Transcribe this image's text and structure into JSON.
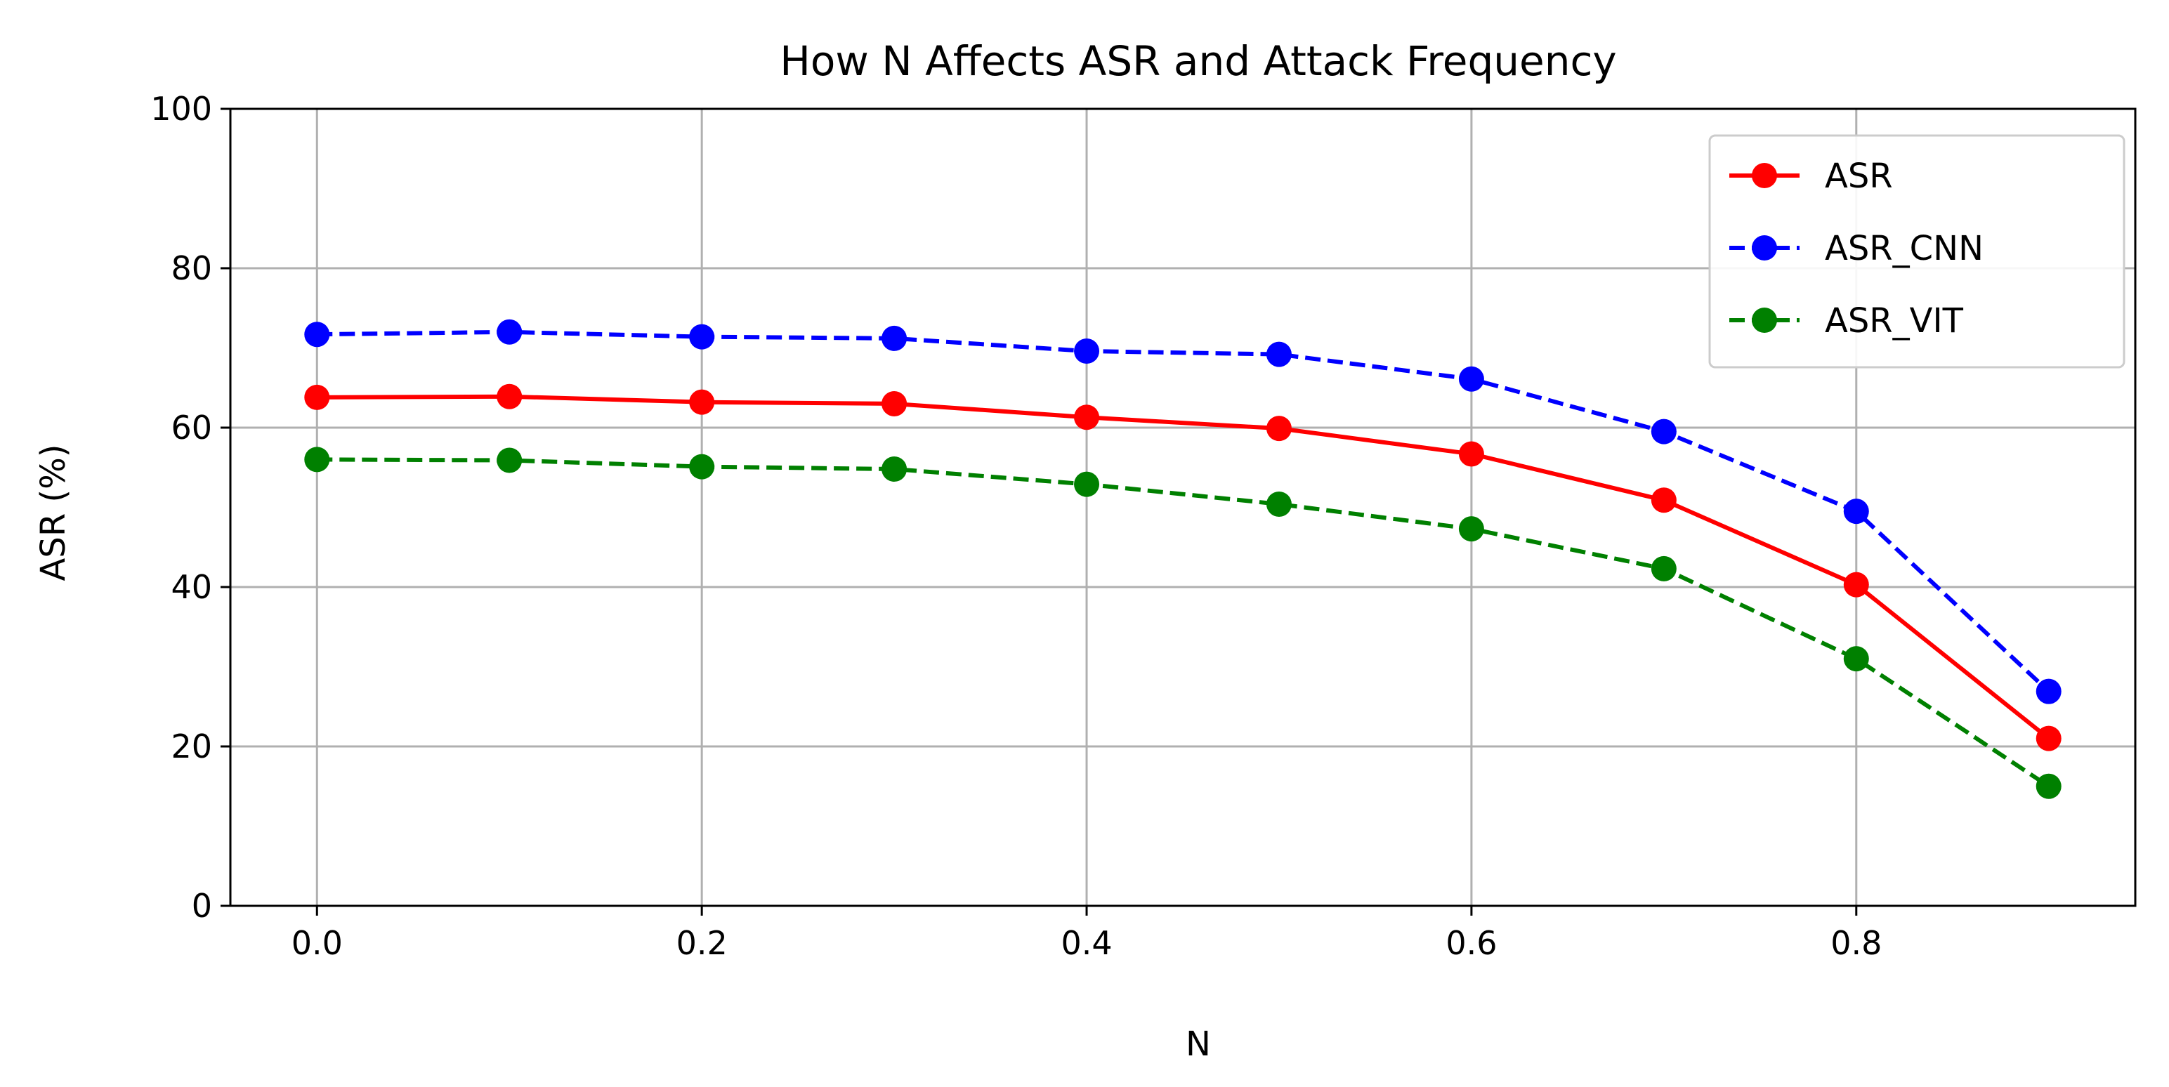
{
  "chart_data": {
    "type": "line",
    "title": "How N Affects ASR and Attack Frequency",
    "xlabel": "N",
    "ylabel": "ASR (%)",
    "xlim": [
      -0.045,
      0.945
    ],
    "ylim": [
      0,
      100
    ],
    "x_ticks": [
      "0.0",
      "0.2",
      "0.4",
      "0.6",
      "0.8"
    ],
    "x_tick_values": [
      0.0,
      0.2,
      0.4,
      0.6,
      0.8
    ],
    "y_ticks": [
      "0",
      "20",
      "40",
      "60",
      "80",
      "100"
    ],
    "y_tick_values": [
      0,
      20,
      40,
      60,
      80,
      100
    ],
    "grid": true,
    "legend_position": "top-right",
    "x": [
      0.0,
      0.1,
      0.2,
      0.3,
      0.4,
      0.5,
      0.6,
      0.7,
      0.8,
      0.9
    ],
    "series": [
      {
        "name": "ASR",
        "color": "#ff0000",
        "line_style": "solid",
        "marker": "circle",
        "values": [
          63.8,
          63.9,
          63.2,
          63.0,
          61.3,
          59.9,
          56.7,
          50.9,
          40.3,
          21.0
        ]
      },
      {
        "name": "ASR_CNN",
        "color": "#0000ff",
        "line_style": "dashed",
        "marker": "circle",
        "values": [
          71.7,
          72.0,
          71.4,
          71.2,
          69.6,
          69.2,
          66.1,
          59.5,
          49.5,
          26.9
        ]
      },
      {
        "name": "ASR_VIT",
        "color": "#008000",
        "line_style": "dashed",
        "marker": "circle",
        "values": [
          56.0,
          55.9,
          55.1,
          54.8,
          52.9,
          50.4,
          47.3,
          42.3,
          31.0,
          15.0
        ]
      }
    ]
  }
}
